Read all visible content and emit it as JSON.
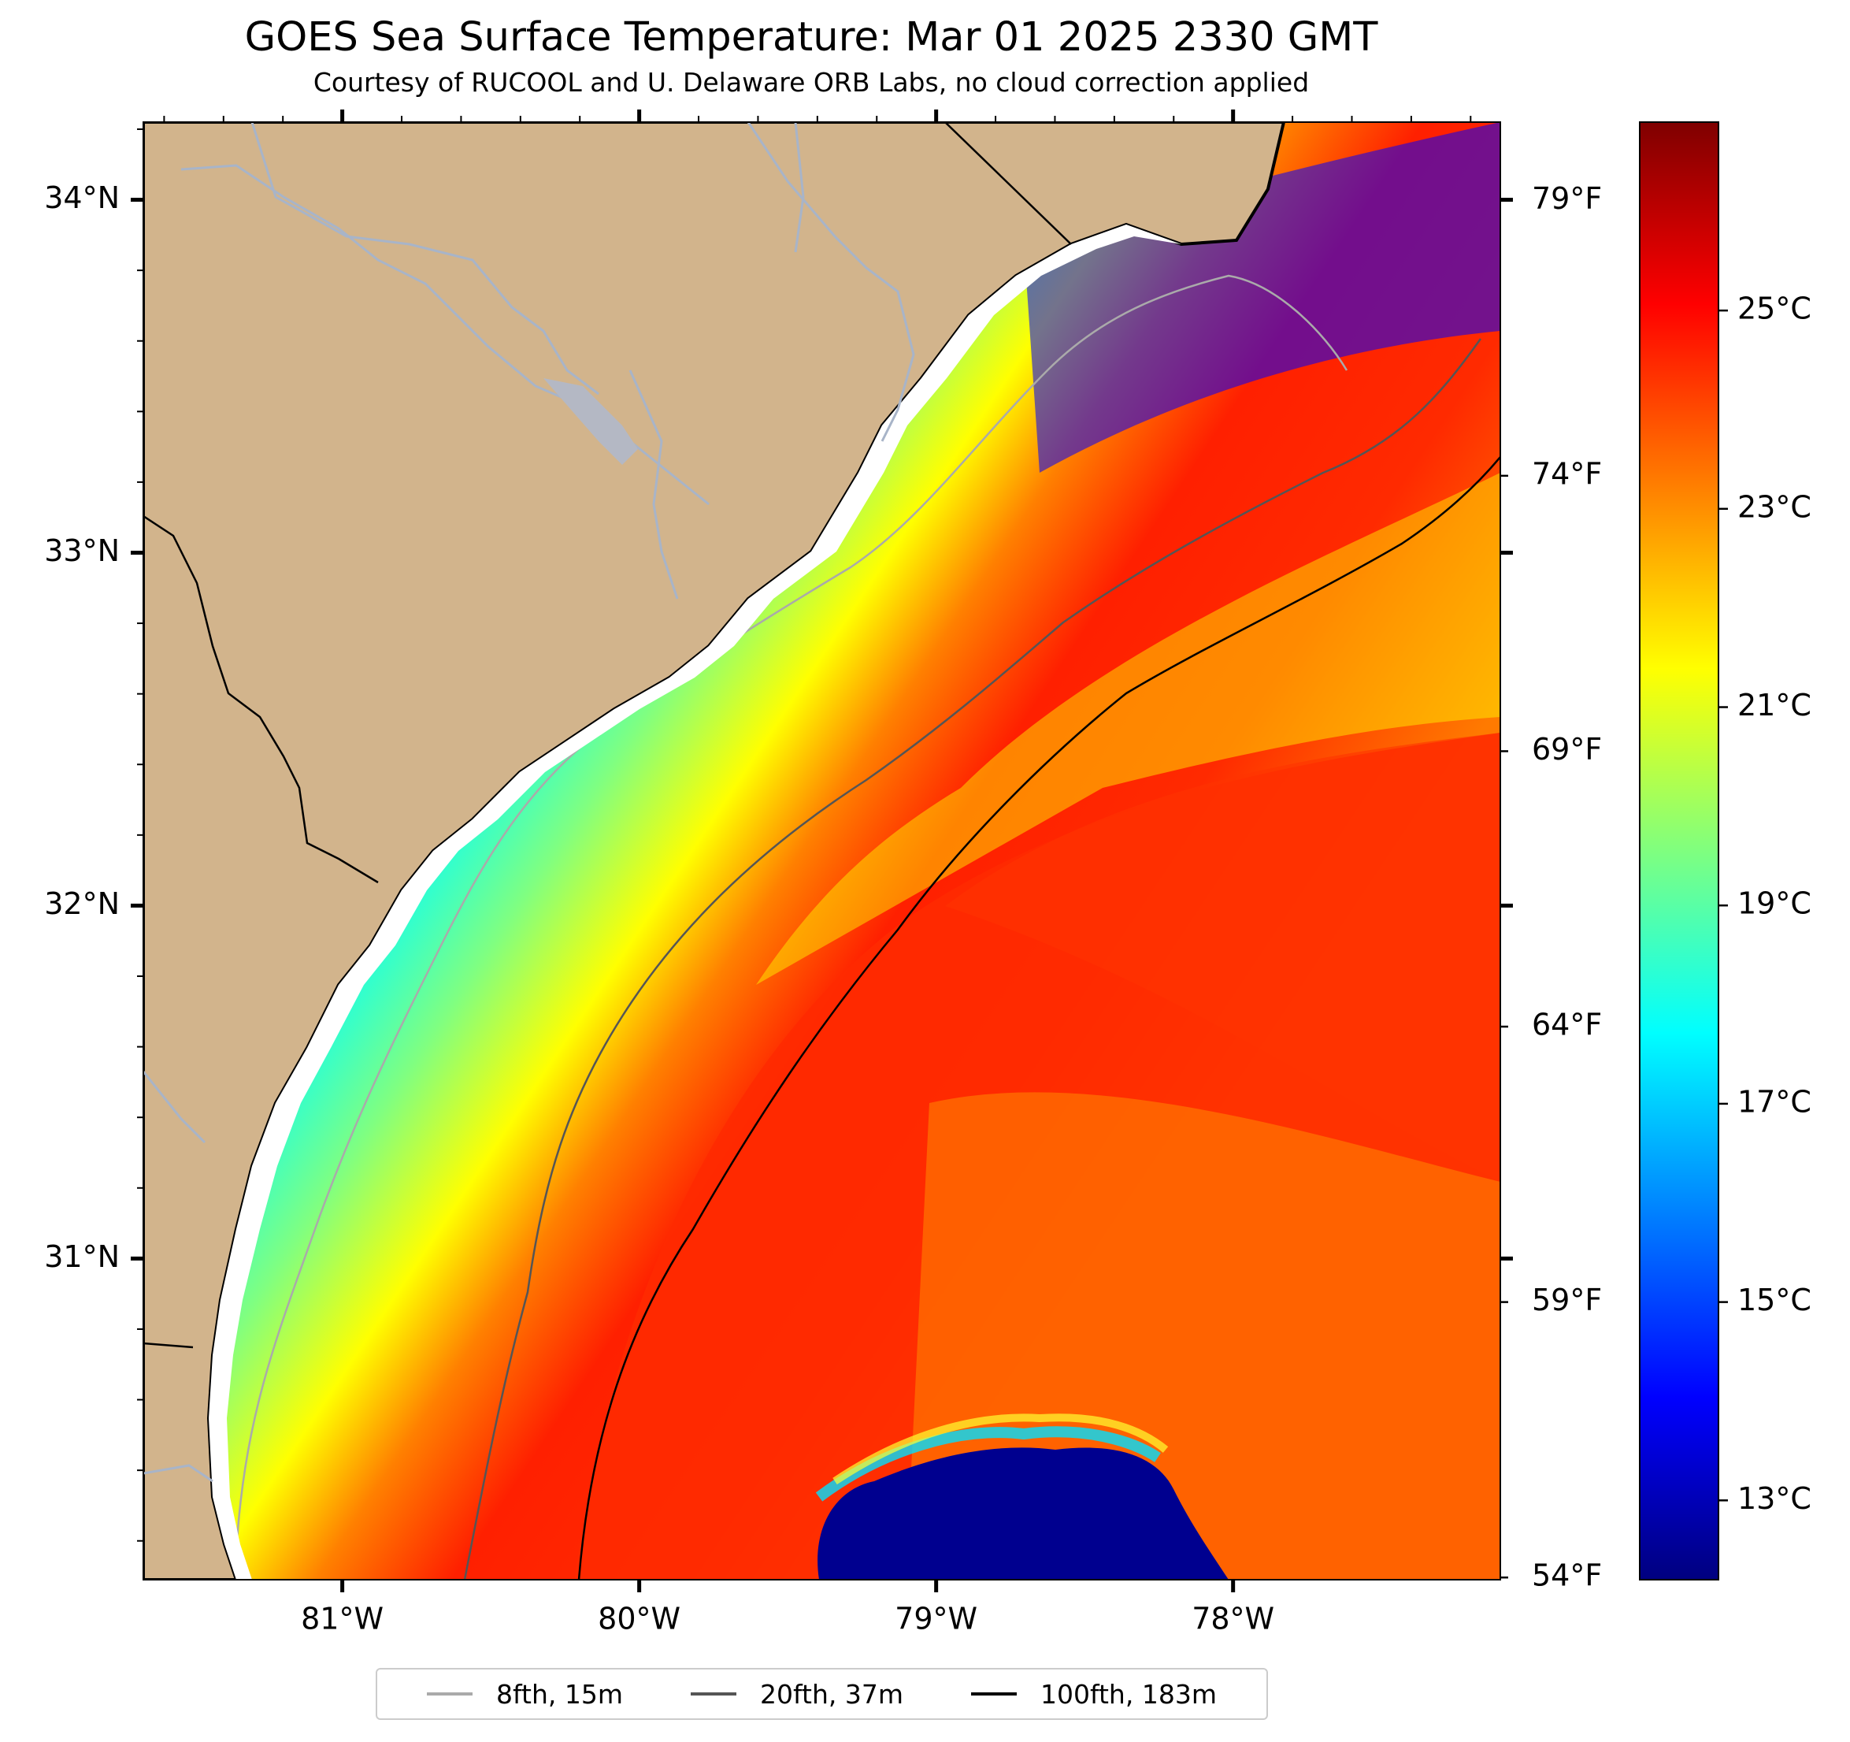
{
  "title": "GOES Sea Surface Temperature: Mar 01 2025 2330 GMT",
  "subtitle": "Courtesy of RUCOOL and U. Delaware ORB Labs, no cloud correction applied",
  "map": {
    "lat_range": [
      30.09,
      34.22
    ],
    "lon_range": [
      -81.67,
      -77.1
    ],
    "lat_ticks": [
      {
        "value": 34,
        "label": "34°N"
      },
      {
        "value": 33,
        "label": "33°N"
      },
      {
        "value": 32,
        "label": "32°N"
      },
      {
        "value": 31,
        "label": "31°N"
      }
    ],
    "lon_ticks": [
      {
        "value": -81,
        "label": "81°W"
      },
      {
        "value": -80,
        "label": "80°W"
      },
      {
        "value": -79,
        "label": "79°W"
      },
      {
        "value": -78,
        "label": "78°W"
      }
    ],
    "land_color": "#d2b48c",
    "coast_color": "#000000",
    "river_color": "#a8b4c8"
  },
  "colorbar": {
    "celsius_range": [
      12.2,
      26.9
    ],
    "celsius_ticks": [
      {
        "value": 25,
        "label": "25°C"
      },
      {
        "value": 23,
        "label": "23°C"
      },
      {
        "value": 21,
        "label": "21°C"
      },
      {
        "value": 19,
        "label": "19°C"
      },
      {
        "value": 17,
        "label": "17°C"
      },
      {
        "value": 15,
        "label": "15°C"
      },
      {
        "value": 13,
        "label": "13°C"
      }
    ],
    "fahrenheit_ticks": [
      {
        "value": 79,
        "label": "79°F"
      },
      {
        "value": 74,
        "label": "74°F"
      },
      {
        "value": 69,
        "label": "69°F"
      },
      {
        "value": 64,
        "label": "64°F"
      },
      {
        "value": 59,
        "label": "59°F"
      },
      {
        "value": 54,
        "label": "54°F"
      }
    ],
    "colors": [
      "#00007f",
      "#0000ff",
      "#007fff",
      "#00ffff",
      "#7fff7f",
      "#ffff00",
      "#ff7f00",
      "#ff0000",
      "#7f0000"
    ]
  },
  "legend": [
    {
      "label": "8fth, 15m",
      "color": "#aaaaaa"
    },
    {
      "label": "20fth, 37m",
      "color": "#555555"
    },
    {
      "label": "100fth, 183m",
      "color": "#000000"
    }
  ]
}
